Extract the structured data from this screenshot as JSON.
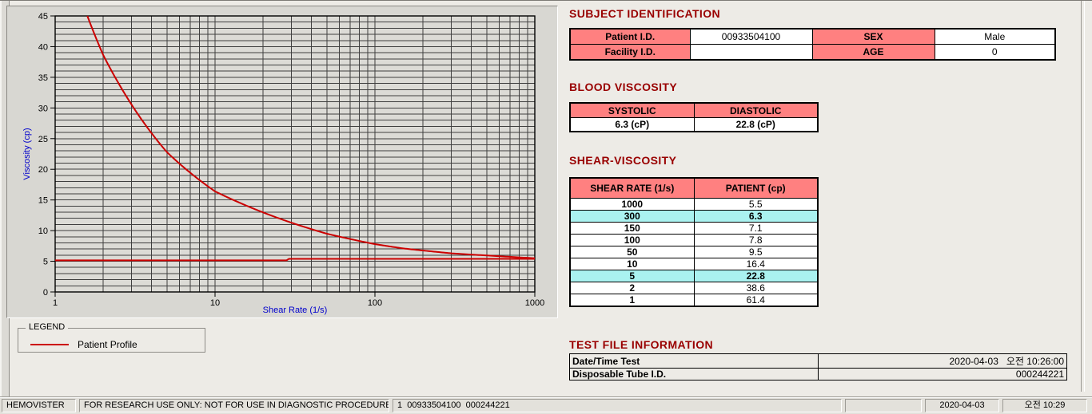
{
  "sections": {
    "subject": {
      "title": "SUBJECT IDENTIFICATION",
      "fields": [
        {
          "label": "Patient I.D.",
          "value": "00933504100"
        },
        {
          "label": "SEX",
          "value": "Male"
        },
        {
          "label": "Facility I.D.",
          "value": ""
        },
        {
          "label": "AGE",
          "value": "0"
        }
      ]
    },
    "blood": {
      "title": "BLOOD VISCOSITY",
      "headers": [
        "SYSTOLIC",
        "DIASTOLIC"
      ],
      "values": [
        "6.3 (cP)",
        "22.8 (cP)"
      ]
    },
    "shear": {
      "title": "SHEAR-VISCOSITY",
      "headers": [
        "SHEAR RATE (1/s)",
        "PATIENT (cp)"
      ],
      "rows": [
        {
          "rate": "1000",
          "value": "5.5",
          "highlight": false
        },
        {
          "rate": "300",
          "value": "6.3",
          "highlight": true
        },
        {
          "rate": "150",
          "value": "7.1",
          "highlight": false
        },
        {
          "rate": "100",
          "value": "7.8",
          "highlight": false
        },
        {
          "rate": "50",
          "value": "9.5",
          "highlight": false
        },
        {
          "rate": "10",
          "value": "16.4",
          "highlight": false
        },
        {
          "rate": "5",
          "value": "22.8",
          "highlight": true
        },
        {
          "rate": "2",
          "value": "38.6",
          "highlight": false
        },
        {
          "rate": "1",
          "value": "61.4",
          "highlight": false
        }
      ]
    },
    "testfile": {
      "title": "TEST FILE INFORMATION",
      "rows": [
        {
          "label": "Date/Time Test",
          "value": "2020-04-03   오전 10:26:00"
        },
        {
          "label": "Disposable Tube I.D.",
          "value": "000244221"
        }
      ]
    }
  },
  "legend": {
    "box_title": "LEGEND",
    "entries": [
      {
        "label": "Patient Profile",
        "color": "#cc0000"
      }
    ]
  },
  "statusbar": {
    "panels": [
      {
        "text": "HEMOVISTER",
        "align": "left"
      },
      {
        "text": "FOR RESEARCH USE ONLY: NOT FOR USE IN DIAGNOSTIC PROCEDURES",
        "align": "left"
      },
      {
        "text": "1  00933504100  000244221",
        "align": "left"
      },
      {
        "text": "",
        "align": "left"
      },
      {
        "text": "2020-04-03",
        "align": "center"
      },
      {
        "text": "오전 10:29",
        "align": "center"
      }
    ]
  },
  "colors": {
    "section_title": "#990000",
    "table_header_bg": "#ff8080",
    "row_highlight_bg": "#aaf2f0",
    "axis_label_blue": "#0000cc",
    "series_red": "#cc0000",
    "grid": "#3f3f3f",
    "plot_bg": "#dcdbd6"
  },
  "chart_data": {
    "type": "line",
    "title": "",
    "xlabel": "Shear Rate (1/s)",
    "ylabel": "Viscosity (cp)",
    "x_scale": "log",
    "xlim": [
      1,
      1000
    ],
    "ylim": [
      0,
      45
    ],
    "x_ticks": [
      1,
      10,
      100,
      1000
    ],
    "y_ticks": [
      0,
      5,
      10,
      15,
      20,
      25,
      30,
      35,
      40,
      45
    ],
    "grid": "log-decade minor x, 1 cP minor y, on",
    "legend_position": "groupbox below chart",
    "series": [
      {
        "name": "Patient Profile",
        "color": "#cc0000",
        "x": [
          1,
          2,
          5,
          10,
          50,
          100,
          150,
          300,
          1000
        ],
        "y": [
          61.4,
          38.6,
          22.8,
          16.4,
          9.5,
          7.8,
          7.1,
          6.3,
          5.5
        ],
        "note": "clipped at top of axis (45 cP)"
      },
      {
        "name": "baseline",
        "color": "#cc0000",
        "x": [
          1,
          28,
          29,
          1000
        ],
        "y": [
          5.15,
          5.15,
          5.4,
          5.4
        ]
      }
    ]
  }
}
